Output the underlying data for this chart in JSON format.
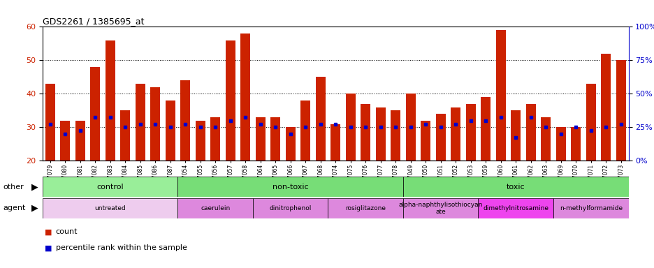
{
  "title": "GDS2261 / 1385695_at",
  "samples": [
    "GSM127079",
    "GSM127080",
    "GSM127081",
    "GSM127082",
    "GSM127083",
    "GSM127084",
    "GSM127085",
    "GSM127086",
    "GSM127087",
    "GSM127054",
    "GSM127055",
    "GSM127056",
    "GSM127057",
    "GSM127058",
    "GSM127064",
    "GSM127065",
    "GSM127066",
    "GSM127067",
    "GSM127068",
    "GSM127074",
    "GSM127075",
    "GSM127076",
    "GSM127077",
    "GSM127078",
    "GSM127049",
    "GSM127050",
    "GSM127051",
    "GSM127052",
    "GSM127053",
    "GSM127059",
    "GSM127060",
    "GSM127061",
    "GSM127062",
    "GSM127063",
    "GSM127069",
    "GSM127070",
    "GSM127071",
    "GSM127072",
    "GSM127073"
  ],
  "counts": [
    43,
    32,
    32,
    48,
    56,
    35,
    43,
    42,
    38,
    44,
    32,
    33,
    56,
    58,
    33,
    33,
    30,
    38,
    45,
    31,
    40,
    37,
    36,
    35,
    40,
    32,
    34,
    36,
    37,
    39,
    59,
    35,
    37,
    33,
    30,
    30,
    43,
    52,
    50
  ],
  "percentiles": [
    31,
    28,
    29,
    33,
    33,
    30,
    31,
    31,
    30,
    31,
    30,
    30,
    32,
    33,
    31,
    30,
    28,
    30,
    31,
    31,
    30,
    30,
    30,
    30,
    30,
    31,
    30,
    31,
    32,
    32,
    33,
    27,
    33,
    30,
    28,
    30,
    29,
    30,
    31
  ],
  "other_groups": [
    {
      "label": "control",
      "start": 0,
      "end": 9,
      "color": "#99EE99"
    },
    {
      "label": "non-toxic",
      "start": 9,
      "end": 24,
      "color": "#77DD77"
    },
    {
      "label": "toxic",
      "start": 24,
      "end": 39,
      "color": "#77DD77"
    }
  ],
  "agent_groups": [
    {
      "label": "untreated",
      "start": 0,
      "end": 9,
      "color": "#EECCEE"
    },
    {
      "label": "caerulein",
      "start": 9,
      "end": 14,
      "color": "#DD88DD"
    },
    {
      "label": "dinitrophenol",
      "start": 14,
      "end": 19,
      "color": "#DD88DD"
    },
    {
      "label": "rosiglitazone",
      "start": 19,
      "end": 24,
      "color": "#DD88DD"
    },
    {
      "label": "alpha-naphthylisothiocyan\nate",
      "start": 24,
      "end": 29,
      "color": "#DD88DD"
    },
    {
      "label": "dimethylnitrosamine",
      "start": 29,
      "end": 34,
      "color": "#EE44EE"
    },
    {
      "label": "n-methylformamide",
      "start": 34,
      "end": 39,
      "color": "#DD88DD"
    }
  ],
  "ylim": [
    20,
    60
  ],
  "yticks": [
    20,
    30,
    40,
    50,
    60
  ],
  "bar_color": "#CC2200",
  "percentile_color": "#0000CC",
  "right_axis_color": "#0000CC",
  "right_ytick_vals": [
    0,
    25,
    50,
    75,
    100
  ],
  "grid_lines": [
    30,
    40,
    50
  ],
  "group_separators": [
    9,
    24
  ]
}
